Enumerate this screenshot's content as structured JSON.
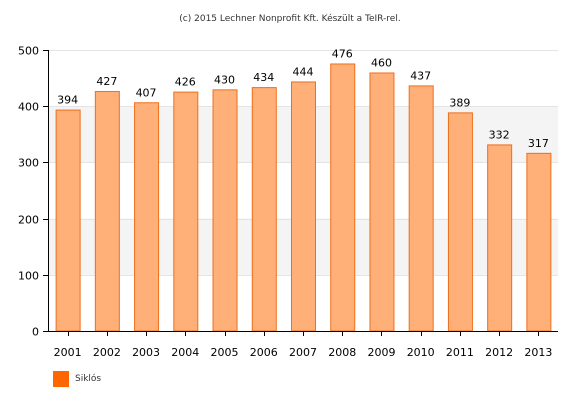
{
  "caption": "(c) 2015 Lechner Nonprofit Kft. Készült a TeIR-rel.",
  "colors": {
    "bar_fill": "#FFAF78",
    "bar_stroke": "#EE6F1A",
    "legend_swatch": "#FF6600",
    "band": "#F4F4F4",
    "axis": "#000000"
  },
  "chart_data": {
    "type": "bar",
    "categories": [
      "2001",
      "2002",
      "2003",
      "2004",
      "2005",
      "2006",
      "2007",
      "2008",
      "2009",
      "2010",
      "2011",
      "2012",
      "2013"
    ],
    "series": [
      {
        "name": "Siklós",
        "values": [
          394,
          427,
          407,
          426,
          430,
          434,
          444,
          476,
          460,
          437,
          389,
          332,
          317
        ]
      }
    ],
    "data_labels": [
      "394",
      "427",
      "407",
      "426",
      "430",
      "434",
      "444",
      "476",
      "460",
      "437",
      "389",
      "332",
      "317"
    ],
    "y_ticks": [
      "0",
      "100",
      "200",
      "300",
      "400",
      "500"
    ],
    "ylim": [
      0,
      500
    ],
    "grid": true,
    "legend_position": "bottom-left"
  }
}
